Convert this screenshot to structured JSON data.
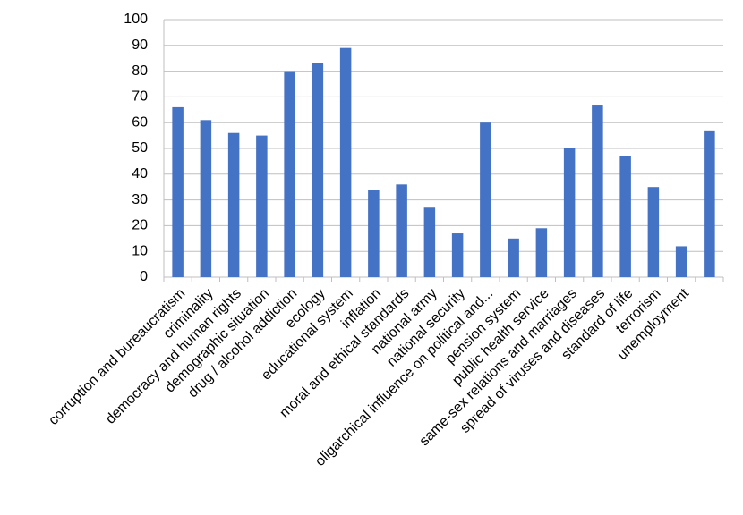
{
  "chart_data": {
    "type": "bar",
    "categories": [
      "corruption and bureaucratism",
      "criminality",
      "democracy and human rights",
      "demographic situation",
      "drug / alcohol addiction",
      "ecology",
      "educational system",
      "inflation",
      "moral and ethical standards",
      "national army",
      "national security",
      "oligarchical influence on political and...",
      "pension system",
      "public health service",
      "same-sex relations and marriages",
      "spread of viruses and diseases",
      "standard of life",
      "terrorism",
      "unemployment",
      null
    ],
    "values": [
      66,
      61,
      56,
      55,
      80,
      83,
      89,
      34,
      36,
      27,
      17,
      60,
      15,
      19,
      50,
      67,
      47,
      35,
      12,
      57
    ],
    "color": "#4472c4",
    "ylim": [
      0,
      100
    ],
    "yticks": [
      0,
      10,
      20,
      30,
      40,
      50,
      60,
      70,
      80,
      90,
      100
    ],
    "grid": true
  }
}
